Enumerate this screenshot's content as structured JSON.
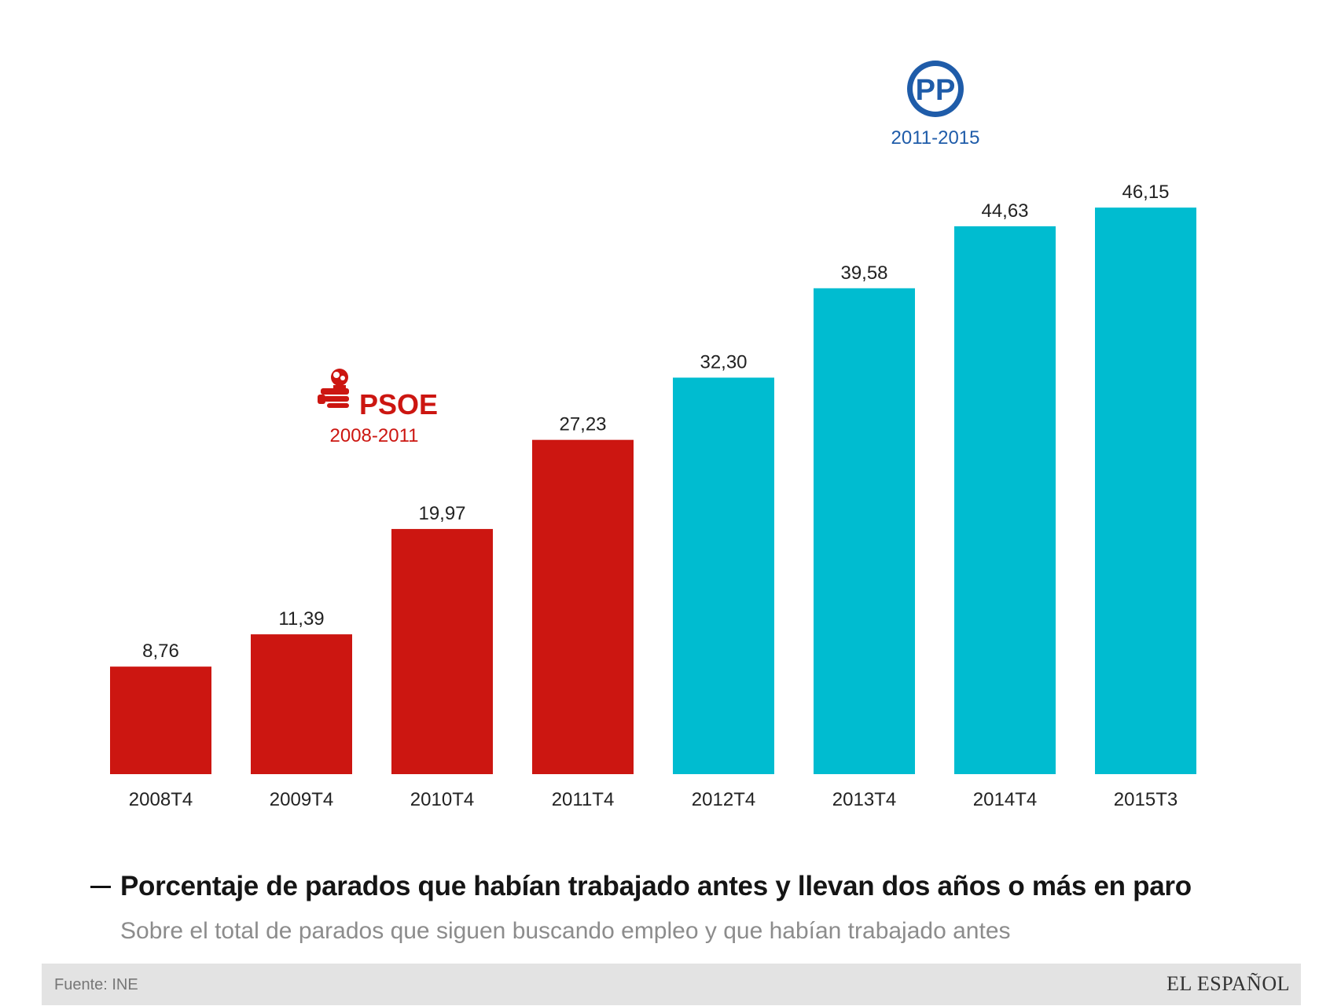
{
  "chart_data": {
    "type": "bar",
    "categories": [
      "2008T4",
      "2009T4",
      "2010T4",
      "2011T4",
      "2012T4",
      "2013T4",
      "2014T4",
      "2015T3"
    ],
    "values": [
      8.76,
      11.39,
      19.97,
      27.23,
      32.3,
      39.58,
      44.63,
      46.15
    ],
    "value_labels": [
      "8,76",
      "11,39",
      "19,97",
      "27,23",
      "32,30",
      "39,58",
      "44,63",
      "46,15"
    ],
    "bar_colors": [
      "#cc1611",
      "#cc1611",
      "#cc1611",
      "#cc1611",
      "#00bcd0",
      "#00bcd0",
      "#00bcd0",
      "#00bcd0"
    ],
    "ylim": [
      0,
      50
    ],
    "grid": false,
    "title": "Porcentaje de parados que habían trabajado antes y llevan dos años o más en paro",
    "subtitle": "Sobre el total de parados que siguen buscando empleo y que habían trabajado antes",
    "annotations": [
      {
        "party": "PSOE",
        "period": "2008-2011",
        "color": "#cc1611",
        "icon": "psoe-rose-fist-icon"
      },
      {
        "party": "PP",
        "period": "2011-2015",
        "color": "#1f5ca9",
        "icon": "pp-logo-icon"
      }
    ]
  },
  "footer": {
    "source": "Fuente: INE",
    "brand": "EL ESPAÑOL"
  }
}
